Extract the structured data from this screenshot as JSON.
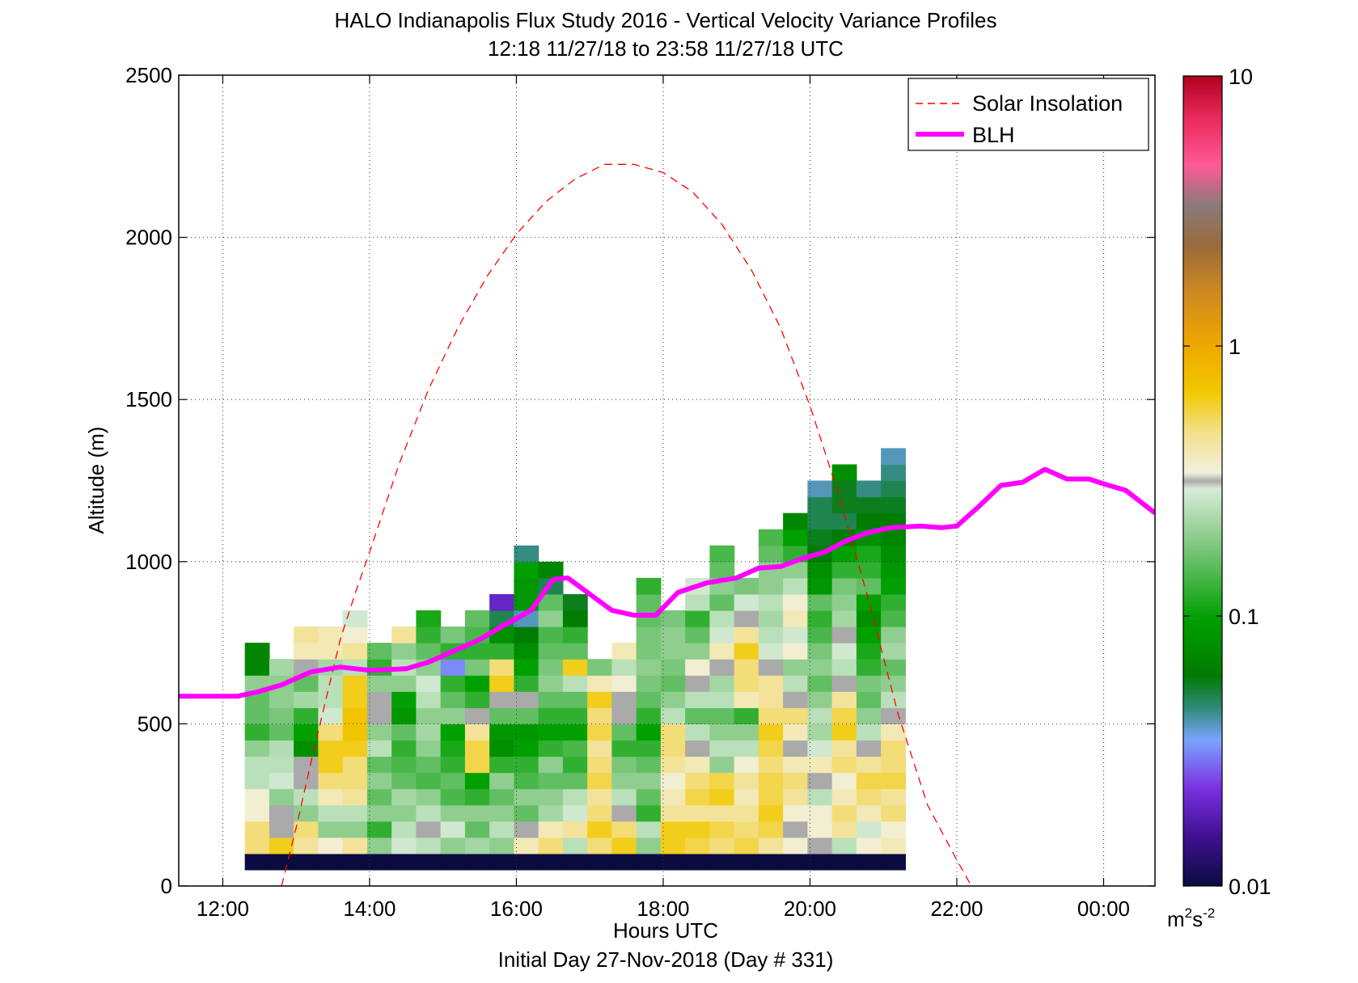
{
  "chart_data": {
    "type": "heatmap",
    "title": "HALO Indianapolis Flux Study 2016 - Vertical Velocity Variance Profiles",
    "subtitle": "12:18 11/27/18 to 23:58 11/27/18  UTC",
    "xlabel": "Hours UTC",
    "xlabel2": "Initial Day 27-Nov-2018 (Day # 331)",
    "ylabel": "Altitude (m)",
    "xlim": [
      11.4,
      24.7
    ],
    "ylim": [
      0,
      2500
    ],
    "x_ticks": [
      12,
      14,
      16,
      18,
      20,
      22,
      24
    ],
    "x_tick_labels": [
      "12:00",
      "14:00",
      "16:00",
      "18:00",
      "20:00",
      "22:00",
      "00:00"
    ],
    "y_ticks": [
      0,
      500,
      1000,
      1500,
      2000,
      2500
    ],
    "y_tick_labels": [
      "0",
      "500",
      "1000",
      "1500",
      "2000",
      "2500"
    ],
    "grid": true,
    "legend_position": "top-right",
    "colorbar": {
      "scale": "log",
      "range": [
        0.01,
        10
      ],
      "tick_values": [
        0.01,
        0.1,
        1,
        10
      ],
      "tick_labels": [
        "0.01",
        "0.1",
        "1",
        "10"
      ],
      "unit_base": "m",
      "unit_exp1": "2",
      "unit_mid": "s",
      "unit_exp2": "-2"
    },
    "heatmap": {
      "x_start": 12.3,
      "bin_hours": 0.3333,
      "y_start": 50,
      "bin_meters": 50,
      "note_symbols": "levels of log10 variance",
      "columns": [
        [
          -2,
          -0.3,
          -0.3,
          -0.45,
          -0.45,
          -0.6,
          -0.6,
          -0.7,
          -0.9,
          -0.8,
          -0.8,
          -0.7,
          -1.15,
          -1.15
        ],
        [
          -2,
          -0.2,
          -0.5,
          -0.5,
          -0.7,
          -0.55,
          -0.6,
          -0.62,
          -0.8,
          -0.75,
          -0.7,
          -0.7,
          -0.65
        ],
        [
          -2,
          -0.35,
          -0.3,
          -0.7,
          -0.6,
          -0.5,
          -0.5,
          -1.1,
          -1.0,
          -0.9,
          -0.65,
          -0.8,
          -0.5,
          -0.4,
          -0.35
        ],
        [
          -2,
          -0.45,
          -0.7,
          -0.6,
          -0.4,
          -0.3,
          -0.2,
          -0.2,
          -0.3,
          -0.55,
          -0.6,
          -0.6,
          -0.65,
          -0.4,
          -0.4
        ],
        [
          -2,
          -0.35,
          -0.7,
          -0.6,
          -0.35,
          -0.3,
          -0.3,
          -0.2,
          -0.15,
          -0.15,
          -0.2,
          -0.2,
          -0.6,
          -0.35,
          -0.45,
          -0.55
        ],
        [
          -2,
          -0.7,
          -0.9,
          -0.7,
          -0.8,
          -0.7,
          -0.8,
          -0.6,
          -0.7,
          -0.5,
          -0.5,
          -0.7,
          -0.9,
          -0.8
        ],
        [
          -2,
          -0.55,
          -0.6,
          -0.7,
          -0.65,
          -0.8,
          -0.85,
          -0.9,
          -0.8,
          -1.05,
          -1.0,
          -0.7,
          -0.6,
          -0.7,
          -0.35
        ],
        [
          -2,
          -0.6,
          -0.5,
          -0.6,
          -0.7,
          -0.85,
          -0.8,
          -0.7,
          -0.65,
          -0.7,
          -0.6,
          -0.55,
          -0.7,
          -0.8,
          -0.9,
          -0.95
        ],
        [
          -2,
          -0.7,
          -0.55,
          -0.7,
          -0.85,
          -0.8,
          -0.9,
          -0.95,
          -1.0,
          -0.7,
          -0.8,
          -0.9,
          -1.5,
          -0.9,
          -0.75
        ],
        [
          -2,
          -0.65,
          -0.8,
          -0.7,
          -0.9,
          -1.0,
          -0.25,
          -0.25,
          -0.35,
          -0.5,
          -0.9,
          -1.0,
          -0.75,
          -0.9,
          -0.85,
          -0.8
        ],
        [
          -2,
          -0.7,
          -0.6,
          -0.7,
          -0.8,
          -0.7,
          -0.9,
          -1.1,
          -1.05,
          -0.8,
          -0.5,
          -0.2,
          -0.3,
          -0.9,
          -1.1,
          -1.3,
          -1.7
        ],
        [
          -2,
          -0.4,
          -0.5,
          -0.8,
          -0.7,
          -0.85,
          -0.9,
          -1.0,
          -1.05,
          -0.8,
          -0.5,
          -0.9,
          -1.0,
          -1.1,
          -1.2,
          -1.4,
          -1.05,
          -1.05,
          -1.0,
          -1.35
        ],
        [
          -2,
          -0.3,
          -0.4,
          -0.65,
          -0.7,
          -0.8,
          -0.7,
          -0.9,
          -1.0,
          -0.9,
          -0.8,
          -0.7,
          -0.75,
          -0.8,
          -0.85,
          -0.7,
          -0.8,
          -1.3,
          -1.15
        ],
        [
          -2,
          -0.6,
          -0.35,
          -0.55,
          -0.6,
          -0.8,
          -0.9,
          -0.85,
          -1.0,
          -0.9,
          -0.8,
          -0.6,
          -0.2,
          -0.8,
          -0.9,
          -1.2,
          -1.25
        ],
        [
          -2,
          -0.3,
          -0.2,
          -0.3,
          -0.35,
          -0.25,
          -0.3,
          -0.35,
          -0.25,
          -0.3,
          -0.2,
          -0.4,
          -0.75
        ],
        [
          -2,
          -0.2,
          -0.3,
          -0.5,
          -0.6,
          -0.7,
          -0.75,
          -0.9,
          -0.8,
          -0.5,
          -0.5,
          -0.45,
          -0.6,
          -0.4
        ],
        [
          -2,
          -0.7,
          -0.6,
          -0.9,
          -0.8,
          -0.7,
          -0.8,
          -0.9,
          -1.0,
          -0.9,
          -0.8,
          -0.75,
          -0.7,
          -0.75,
          -0.75,
          -0.8,
          -0.8,
          -0.9
        ],
        [
          -2,
          -0.2,
          -0.2,
          -0.35,
          -0.4,
          -0.45,
          -0.35,
          -0.3,
          -0.3,
          -0.6,
          -0.7,
          -0.8,
          -0.75,
          -0.7,
          -0.7,
          -0.75
        ],
        [
          -2,
          -0.25,
          -0.2,
          -0.35,
          -0.25,
          -0.3,
          -0.4,
          -0.5,
          -0.6,
          -0.8,
          -0.6,
          -0.5,
          -0.45,
          -0.7,
          -0.8,
          -0.9,
          -0.6,
          -0.55
        ],
        [
          -2,
          -0.3,
          -0.25,
          -0.35,
          -0.2,
          -0.25,
          -0.7,
          -0.6,
          -0.7,
          -0.8,
          -0.6,
          -0.65,
          -0.5,
          -0.4,
          -0.55,
          -0.6,
          -0.8,
          -0.7,
          -0.8,
          -0.85
        ],
        [
          -2,
          -0.25,
          -0.3,
          -0.35,
          -0.4,
          -0.35,
          -0.45,
          -0.6,
          -0.7,
          -0.9,
          -0.4,
          -0.3,
          -0.3,
          -0.2,
          -0.35,
          -0.5,
          -0.55,
          -0.75
        ],
        [
          -2,
          -0.35,
          -0.25,
          -0.2,
          -0.25,
          -0.25,
          -0.3,
          -0.25,
          -0.2,
          -0.3,
          -0.35,
          -0.35,
          -0.5,
          -0.55,
          -0.6,
          -0.65,
          -0.6,
          -0.7,
          -0.7,
          -0.8,
          -0.85
        ],
        [
          -2,
          -0.45,
          -0.5,
          -0.45,
          -0.35,
          -0.3,
          -0.4,
          -0.5,
          -0.4,
          -0.3,
          -0.5,
          -0.6,
          -0.7,
          -0.45,
          -0.55,
          -0.4,
          -0.45,
          -0.6,
          -0.7,
          -0.9,
          -1.0,
          -1.15
        ],
        [
          -2,
          -0.5,
          -0.45,
          -0.45,
          -0.6,
          -0.5,
          -0.4,
          -0.55,
          -0.65,
          -0.6,
          -0.7,
          -0.8,
          -0.7,
          -0.75,
          -0.85,
          -0.9,
          -0.8,
          -1.05,
          -1.1,
          -1.2,
          -1.25,
          -1.3,
          -1.3,
          -1.4
        ],
        [
          -2,
          -0.6,
          -0.35,
          -0.3,
          -0.4,
          -0.45,
          -0.3,
          -0.35,
          -0.2,
          -0.25,
          -0.35,
          -0.5,
          -0.6,
          -0.55,
          -0.5,
          -0.65,
          -0.7,
          -0.75,
          -0.9,
          -1.0,
          -1.2,
          -1.3,
          -1.25,
          -1.25,
          -1.1
        ],
        [
          -2,
          -0.45,
          -0.55,
          -0.4,
          -0.3,
          -0.25,
          -0.35,
          -0.5,
          -0.6,
          -0.7,
          -0.8,
          -0.75,
          -0.9,
          -0.95,
          -1.0,
          -1.1,
          -1.0,
          -0.8,
          -0.9,
          -0.95,
          -1.1,
          -1.2,
          -1.25,
          -1.35
        ],
        [
          -2,
          -0.4,
          -0.45,
          -0.3,
          -0.35,
          -0.25,
          -0.3,
          -0.3,
          -0.4,
          -0.5,
          -0.6,
          -0.7,
          -0.8,
          -0.65,
          -0.7,
          -0.85,
          -0.9,
          -1.0,
          -1.05,
          -1.1,
          -1.15,
          -1.2,
          -1.25,
          -1.3,
          -1.35,
          -1.4
        ]
      ]
    },
    "series": [
      {
        "name": "Solar Insolation",
        "style": "dashed",
        "color": "#ff0000",
        "x": [
          12.8,
          13.0,
          13.2,
          13.4,
          13.6,
          13.8,
          14.0,
          14.4,
          14.8,
          15.2,
          15.6,
          16.0,
          16.4,
          16.8,
          17.2,
          17.6,
          18.0,
          18.4,
          18.8,
          19.2,
          19.6,
          20.0,
          20.4,
          20.8,
          21.2,
          21.6,
          22.0,
          22.2
        ],
        "y": [
          0,
          180,
          380,
          570,
          760,
          900,
          1030,
          1300,
          1530,
          1720,
          1880,
          2010,
          2110,
          2180,
          2225,
          2225,
          2200,
          2140,
          2040,
          1900,
          1720,
          1480,
          1200,
          880,
          530,
          250,
          80,
          0
        ]
      },
      {
        "name": "BLH",
        "style": "solid",
        "color": "#ff00ff",
        "x": [
          11.4,
          12.2,
          12.5,
          12.8,
          13.2,
          13.6,
          14.0,
          14.5,
          14.8,
          15.1,
          15.5,
          15.8,
          16.2,
          16.5,
          16.7,
          17.0,
          17.3,
          17.6,
          17.9,
          18.2,
          18.6,
          19.0,
          19.3,
          19.6,
          19.9,
          20.2,
          20.5,
          20.8,
          21.1,
          21.5,
          21.8,
          22.0,
          22.3,
          22.6,
          22.9,
          23.2,
          23.5,
          23.8,
          24.0,
          24.3,
          24.7
        ],
        "y": [
          585,
          585,
          600,
          620,
          660,
          675,
          665,
          670,
          690,
          720,
          760,
          800,
          850,
          945,
          950,
          900,
          850,
          835,
          835,
          905,
          935,
          950,
          980,
          985,
          1010,
          1030,
          1065,
          1090,
          1105,
          1110,
          1105,
          1110,
          1170,
          1235,
          1245,
          1285,
          1255,
          1255,
          1240,
          1220,
          1150
        ]
      }
    ]
  }
}
